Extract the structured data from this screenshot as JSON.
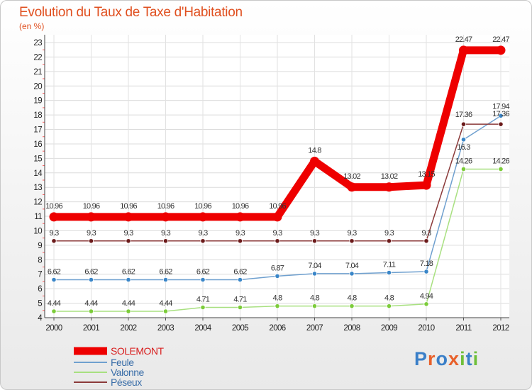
{
  "header": {
    "title": "Evolution du Taux de Taxe d'Habitation",
    "unit": "(en %)"
  },
  "logo": {
    "text": "Proxiti",
    "colors": [
      "#3a7fc8",
      "#e8602a",
      "#3a7fc8",
      "#e8602a",
      "#6fbf3a",
      "#3a7fc8",
      "#6fbf3a"
    ]
  },
  "chart_data": {
    "type": "line",
    "x": [
      "2000",
      "2001",
      "2002",
      "2003",
      "2004",
      "2005",
      "2006",
      "2007",
      "2008",
      "2009",
      "2010",
      "2011",
      "2012"
    ],
    "ylim": [
      4,
      23
    ],
    "y_ticks": [
      4,
      5,
      6,
      7,
      8,
      9,
      10,
      11,
      12,
      13,
      14,
      15,
      16,
      17,
      18,
      19,
      20,
      21,
      22,
      23
    ],
    "grid": true,
    "legend_position": "bottom-left",
    "series": [
      {
        "name": "SOLEMONT",
        "color": "#ee0000",
        "width": 11,
        "values": [
          10.96,
          10.96,
          10.96,
          10.96,
          10.96,
          10.96,
          10.96,
          14.8,
          13.02,
          13.02,
          13.15,
          22.47,
          22.47
        ],
        "labels": [
          "10.96",
          "10.96",
          "10.96",
          "10.96",
          "10.96",
          "10.96",
          "10.96",
          "14.8",
          "13.02",
          "13.02",
          "13.15",
          "22.47",
          "22.47"
        ]
      },
      {
        "name": "Feule",
        "color": "#6fa0cf",
        "marker": "#3a86c8",
        "width": 1.5,
        "values": [
          6.62,
          6.62,
          6.62,
          6.62,
          6.62,
          6.62,
          6.87,
          7.04,
          7.04,
          7.11,
          7.18,
          16.3,
          17.94
        ],
        "labels": [
          "6.62",
          "6.62",
          "6.62",
          "6.62",
          "6.62",
          "6.62",
          "6.87",
          "7.04",
          "7.04",
          "7.11",
          "7.18",
          "16.3",
          "17.94"
        ]
      },
      {
        "name": "Valonne",
        "color": "#a8e080",
        "marker": "#7ccc3a",
        "width": 1.5,
        "values": [
          4.44,
          4.44,
          4.44,
          4.44,
          4.71,
          4.71,
          4.8,
          4.8,
          4.8,
          4.8,
          4.94,
          14.26,
          14.26
        ],
        "labels": [
          "4.44",
          "4.44",
          "4.44",
          "4.44",
          "4.71",
          "4.71",
          "4.8",
          "4.8",
          "4.8",
          "4.8",
          "4.94",
          "14.26",
          "14.26"
        ]
      },
      {
        "name": "Péseux",
        "color": "#8b3a3a",
        "marker": "#6b1a1a",
        "width": 1.5,
        "values": [
          9.3,
          9.3,
          9.3,
          9.3,
          9.3,
          9.3,
          9.3,
          9.3,
          9.3,
          9.3,
          9.3,
          17.36,
          17.36
        ],
        "labels": [
          "9.3",
          "9.3",
          "9.3",
          "9.3",
          "9.3",
          "9.3",
          "9.3",
          "9.3",
          "9.3",
          "9.3",
          "9.3",
          "17.36",
          "17.36"
        ]
      }
    ]
  }
}
